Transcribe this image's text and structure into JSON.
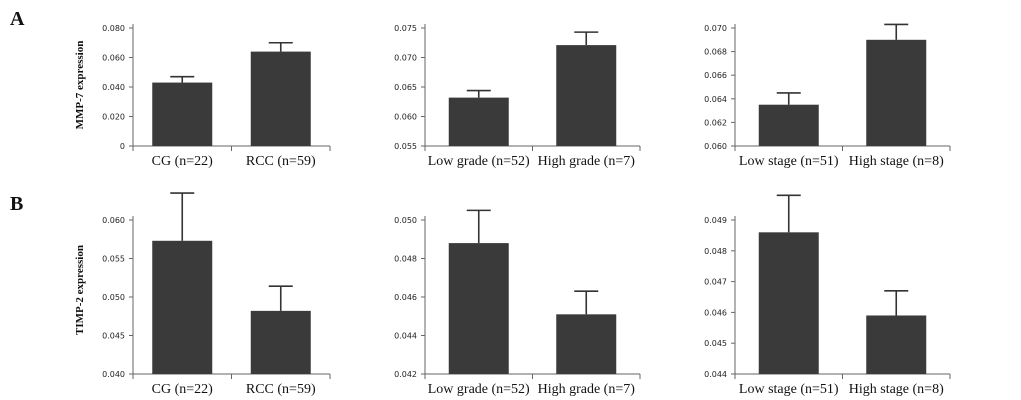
{
  "panel_labels": [
    "A",
    "B"
  ],
  "row_ylabels": [
    "MMP-7 expression",
    "TIMP-2 expression"
  ],
  "chart_data": [
    {
      "type": "bar",
      "row": 0,
      "col": 0,
      "categories": [
        "CG (n=22)",
        "RCC (n=59)"
      ],
      "values": [
        0.043,
        0.064
      ],
      "errors": [
        0.004,
        0.006
      ],
      "ylim": [
        0,
        0.08
      ],
      "ticks": [
        0,
        0.02,
        0.04,
        0.06,
        0.08
      ],
      "tick_labels": [
        "0",
        "0.020",
        "0.040",
        "0.060",
        "0.080"
      ],
      "ylabel": "MMP-7 expression"
    },
    {
      "type": "bar",
      "row": 0,
      "col": 1,
      "categories": [
        "Low grade (n=52)",
        "High grade (n=7)"
      ],
      "values": [
        0.0632,
        0.0721
      ],
      "errors": [
        0.0012,
        0.0022
      ],
      "ylim": [
        0.055,
        0.075
      ],
      "ticks": [
        0.055,
        0.06,
        0.065,
        0.07,
        0.075
      ],
      "tick_labels": [
        "0.055",
        "0.060",
        "0.065",
        "0.070",
        "0.075"
      ]
    },
    {
      "type": "bar",
      "row": 0,
      "col": 2,
      "categories": [
        "Low stage (n=51)",
        "High stage (n=8)"
      ],
      "values": [
        0.0635,
        0.069
      ],
      "errors": [
        0.001,
        0.0013
      ],
      "ylim": [
        0.06,
        0.07
      ],
      "ticks": [
        0.06,
        0.062,
        0.064,
        0.066,
        0.068,
        0.07
      ],
      "tick_labels": [
        "0.060",
        "0.062",
        "0.064",
        "0.066",
        "0.068",
        "0.070"
      ]
    },
    {
      "type": "bar",
      "row": 1,
      "col": 0,
      "categories": [
        "CG (n=22)",
        "RCC (n=59)"
      ],
      "values": [
        0.0573,
        0.0482
      ],
      "errors": [
        0.0062,
        0.0032
      ],
      "ylim": [
        0.04,
        0.06
      ],
      "ticks": [
        0.04,
        0.045,
        0.05,
        0.055,
        0.06
      ],
      "tick_labels": [
        "0.040",
        "0.045",
        "0.050",
        "0.055",
        "0.060"
      ],
      "ylabel": "TIMP-2 expression"
    },
    {
      "type": "bar",
      "row": 1,
      "col": 1,
      "categories": [
        "Low grade (n=52)",
        "High grade (n=7)"
      ],
      "values": [
        0.0488,
        0.0451
      ],
      "errors": [
        0.0017,
        0.0012
      ],
      "ylim": [
        0.042,
        0.05
      ],
      "ticks": [
        0.042,
        0.044,
        0.046,
        0.048,
        0.05
      ],
      "tick_labels": [
        "0.042",
        "0.044",
        "0.046",
        "0.048",
        "0.050"
      ]
    },
    {
      "type": "bar",
      "row": 1,
      "col": 2,
      "categories": [
        "Low stage (n=51)",
        "High stage (n=8)"
      ],
      "values": [
        0.0486,
        0.0459
      ],
      "errors": [
        0.0012,
        0.0008
      ],
      "ylim": [
        0.044,
        0.049
      ],
      "ticks": [
        0.044,
        0.045,
        0.046,
        0.047,
        0.048,
        0.049
      ],
      "tick_labels": [
        "0.044",
        "0.045",
        "0.046",
        "0.047",
        "0.048",
        "0.049"
      ]
    }
  ]
}
